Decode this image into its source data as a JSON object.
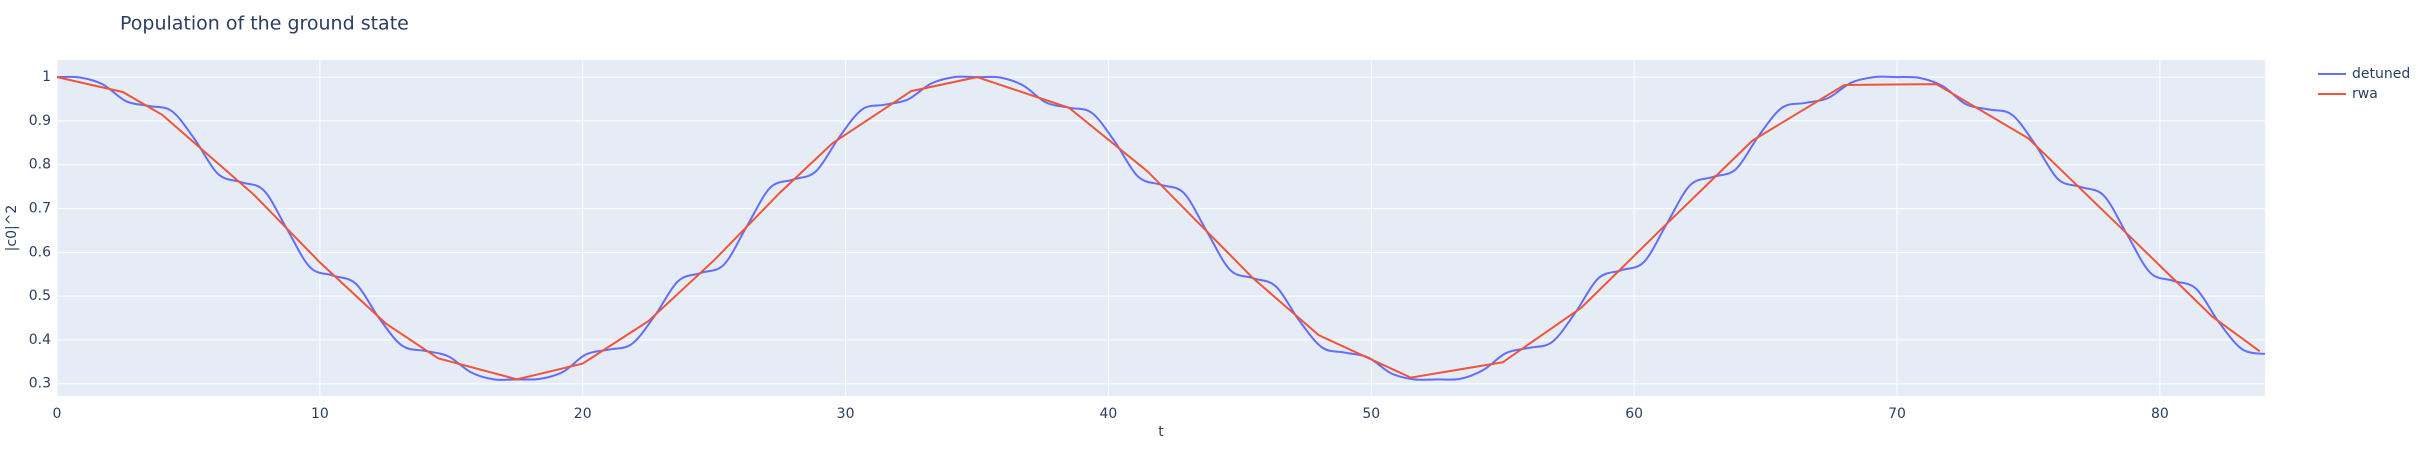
{
  "chart_data": {
    "type": "line",
    "title": "Population of the ground state",
    "xlabel": "t",
    "ylabel": "|c0|^2",
    "xlim": [
      0,
      84
    ],
    "ylim": [
      0.272,
      1.039
    ],
    "xticks": [
      0,
      10,
      20,
      30,
      40,
      50,
      60,
      70,
      80
    ],
    "yticks": [
      0.3,
      0.4,
      0.5,
      0.6,
      0.7,
      0.8,
      0.9,
      1
    ],
    "grid": true,
    "legend": "right",
    "series": [
      {
        "name": "detuned",
        "color": "#636efa",
        "x": [
          0,
          0.875,
          1.75,
          2.625,
          3.5,
          4.375,
          5.25,
          6.125,
          7,
          7.875,
          8.75,
          9.625,
          10.5,
          11.375,
          12.25,
          13.125,
          14,
          14.875,
          15.75,
          16.625,
          17.5,
          18.375,
          19.25,
          20.125,
          21,
          21.875,
          22.75,
          23.625,
          24.5,
          25.375,
          26.25,
          27.125,
          28,
          28.875,
          29.75,
          30.625,
          31.5,
          32.375,
          33.25,
          34.125,
          35,
          35.875,
          36.75,
          37.625,
          38.5,
          39.375,
          40.25,
          41.125,
          42,
          42.875,
          43.75,
          44.625,
          45.5,
          46.375,
          47.25,
          48.125,
          49,
          49.875,
          50.75,
          51.625,
          52.5,
          53.375,
          54.25,
          55.125,
          56,
          56.875,
          57.75,
          58.625,
          59.5,
          60.375,
          61.25,
          62.125,
          63,
          63.875,
          64.75,
          65.625,
          66.5,
          67.375,
          68.25,
          69.125,
          70,
          70.875,
          71.75,
          72.625,
          73.5,
          74.375,
          75.25,
          76.125,
          77,
          77.875,
          78.75,
          79.625,
          80.5,
          81.375,
          82.25,
          83.125,
          84
        ],
        "values": [
          1.0,
          0.999,
          0.983,
          0.945,
          0.934,
          0.922,
          0.857,
          0.779,
          0.76,
          0.741,
          0.653,
          0.566,
          0.547,
          0.528,
          0.45,
          0.387,
          0.375,
          0.363,
          0.326,
          0.31,
          0.31,
          0.311,
          0.327,
          0.367,
          0.378,
          0.391,
          0.456,
          0.534,
          0.553,
          0.572,
          0.66,
          0.747,
          0.766,
          0.785,
          0.862,
          0.926,
          0.937,
          0.949,
          0.985,
          1.0,
          1.0,
          0.999,
          0.981,
          0.942,
          0.93,
          0.918,
          0.852,
          0.773,
          0.754,
          0.735,
          0.647,
          0.56,
          0.541,
          0.522,
          0.445,
          0.383,
          0.371,
          0.36,
          0.324,
          0.31,
          0.31,
          0.311,
          0.331,
          0.37,
          0.382,
          0.395,
          0.461,
          0.54,
          0.559,
          0.578,
          0.666,
          0.753,
          0.772,
          0.79,
          0.867,
          0.93,
          0.941,
          0.952,
          0.987,
          1.0,
          1.0,
          0.998,
          0.979,
          0.938,
          0.926,
          0.914,
          0.847,
          0.767,
          0.749,
          0.729,
          0.641,
          0.554,
          0.535,
          0.517,
          0.44,
          0.379,
          0.368
        ]
      },
      {
        "name": "rwa",
        "color": "#EF553B",
        "x": [
          0,
          2.5,
          4,
          7.5,
          10,
          12.5,
          14.5,
          17.5,
          20,
          22.5,
          25,
          27.5,
          29.5,
          32.5,
          35,
          38.5,
          41.5,
          45.5,
          48,
          51.5,
          55,
          58,
          61,
          64.5,
          68,
          71.5,
          75,
          78.5,
          82,
          83.8
        ],
        "values": [
          1.0,
          0.966,
          0.914,
          0.731,
          0.577,
          0.438,
          0.358,
          0.31,
          0.346,
          0.443,
          0.582,
          0.736,
          0.849,
          0.968,
          1.0,
          0.93,
          0.784,
          0.541,
          0.411,
          0.314,
          0.349,
          0.474,
          0.651,
          0.855,
          0.982,
          0.984,
          0.86,
          0.657,
          0.453,
          0.374
        ]
      }
    ]
  }
}
